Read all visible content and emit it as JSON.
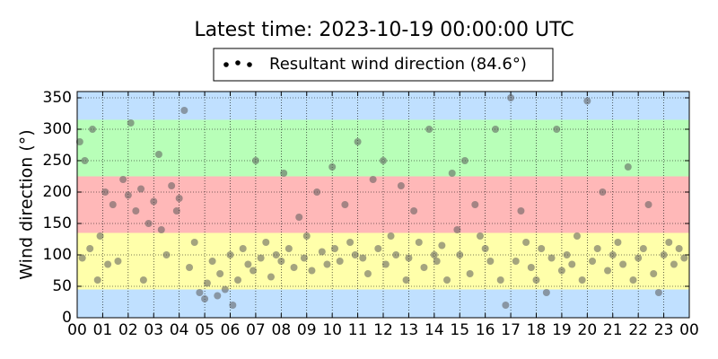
{
  "chart_data": {
    "type": "scatter",
    "title": "Latest time: 2023-10-19 00:00:00 UTC",
    "y_label": "Wind direction (°)",
    "grid": true,
    "legend": "top",
    "xlim": [
      0,
      24
    ],
    "xticks": [
      {
        "value": 0,
        "label": "00"
      },
      {
        "value": 1,
        "label": "01"
      },
      {
        "value": 2,
        "label": "02"
      },
      {
        "value": 3,
        "label": "03"
      },
      {
        "value": 4,
        "label": "04"
      },
      {
        "value": 5,
        "label": "05"
      },
      {
        "value": 6,
        "label": "06"
      },
      {
        "value": 7,
        "label": "07"
      },
      {
        "value": 8,
        "label": "08"
      },
      {
        "value": 9,
        "label": "09"
      },
      {
        "value": 10,
        "label": "10"
      },
      {
        "value": 11,
        "label": "11"
      },
      {
        "value": 12,
        "label": "12"
      },
      {
        "value": 13,
        "label": "13"
      },
      {
        "value": 14,
        "label": "14"
      },
      {
        "value": 15,
        "label": "15"
      },
      {
        "value": 16,
        "label": "16"
      },
      {
        "value": 17,
        "label": "17"
      },
      {
        "value": 18,
        "label": "18"
      },
      {
        "value": 19,
        "label": "19"
      },
      {
        "value": 20,
        "label": "20"
      },
      {
        "value": 21,
        "label": "21"
      },
      {
        "value": 22,
        "label": "22"
      },
      {
        "value": 23,
        "label": "23"
      },
      {
        "value": 24,
        "label": "00"
      }
    ],
    "ylim": [
      0,
      360
    ],
    "yticks": [
      0,
      50,
      100,
      150,
      200,
      250,
      300,
      350
    ],
    "bands": [
      {
        "from": 0,
        "to": 45,
        "color": "#c0e0ff"
      },
      {
        "from": 45,
        "to": 135,
        "color": "#ffffaa"
      },
      {
        "from": 135,
        "to": 225,
        "color": "#ffb8b8"
      },
      {
        "from": 225,
        "to": 315,
        "color": "#b8ffb8"
      },
      {
        "from": 315,
        "to": 360,
        "color": "#c0e0ff"
      }
    ],
    "series": [
      {
        "name": "Resultant wind direction (84.6°)",
        "color": "#5a5a5a",
        "x": [
          0.1,
          0.2,
          0.3,
          0.5,
          0.6,
          0.8,
          0.9,
          1.1,
          1.2,
          1.4,
          1.6,
          1.8,
          2.0,
          2.1,
          2.3,
          2.5,
          2.6,
          2.8,
          3.0,
          3.2,
          3.3,
          3.5,
          3.7,
          3.9,
          4.0,
          4.2,
          4.4,
          4.6,
          4.8,
          5.0,
          5.1,
          5.3,
          5.5,
          5.6,
          5.8,
          6.0,
          6.1,
          6.3,
          6.5,
          6.7,
          6.9,
          7.0,
          7.2,
          7.4,
          7.6,
          7.8,
          8.0,
          8.1,
          8.3,
          8.5,
          8.7,
          8.9,
          9.0,
          9.2,
          9.4,
          9.6,
          9.8,
          10.0,
          10.1,
          10.3,
          10.5,
          10.7,
          10.9,
          11.0,
          11.2,
          11.4,
          11.6,
          11.8,
          12.0,
          12.1,
          12.3,
          12.5,
          12.7,
          12.9,
          13.0,
          13.2,
          13.4,
          13.6,
          13.8,
          14.0,
          14.1,
          14.3,
          14.5,
          14.7,
          14.9,
          15.0,
          15.2,
          15.4,
          15.6,
          15.8,
          16.0,
          16.2,
          16.4,
          16.6,
          16.8,
          17.0,
          17.2,
          17.4,
          17.6,
          17.8,
          18.0,
          18.2,
          18.4,
          18.6,
          18.8,
          19.0,
          19.2,
          19.4,
          19.6,
          19.8,
          20.0,
          20.2,
          20.4,
          20.6,
          20.8,
          21.0,
          21.2,
          21.4,
          21.6,
          21.8,
          22.0,
          22.2,
          22.4,
          22.6,
          22.8,
          23.0,
          23.2,
          23.4,
          23.6,
          23.8
        ],
        "values": [
          280,
          95,
          250,
          110,
          300,
          60,
          130,
          200,
          85,
          180,
          90,
          220,
          195,
          310,
          170,
          205,
          60,
          150,
          185,
          260,
          140,
          100,
          210,
          170,
          190,
          330,
          80,
          120,
          40,
          30,
          55,
          90,
          35,
          70,
          45,
          100,
          20,
          60,
          110,
          85,
          75,
          250,
          95,
          120,
          65,
          100,
          90,
          230,
          110,
          80,
          160,
          95,
          130,
          75,
          200,
          105,
          85,
          240,
          110,
          90,
          180,
          120,
          100,
          280,
          95,
          70,
          220,
          110,
          250,
          85,
          130,
          100,
          210,
          60,
          95,
          170,
          120,
          80,
          300,
          100,
          90,
          115,
          60,
          230,
          140,
          100,
          250,
          70,
          180,
          130,
          110,
          90,
          300,
          60,
          20,
          350,
          90,
          170,
          120,
          80,
          60,
          110,
          40,
          95,
          300,
          75,
          100,
          85,
          130,
          60,
          345,
          90,
          110,
          200,
          75,
          100,
          120,
          85,
          240,
          60,
          95,
          110,
          180,
          70,
          40,
          100,
          120,
          85,
          110,
          95
        ]
      }
    ]
  }
}
